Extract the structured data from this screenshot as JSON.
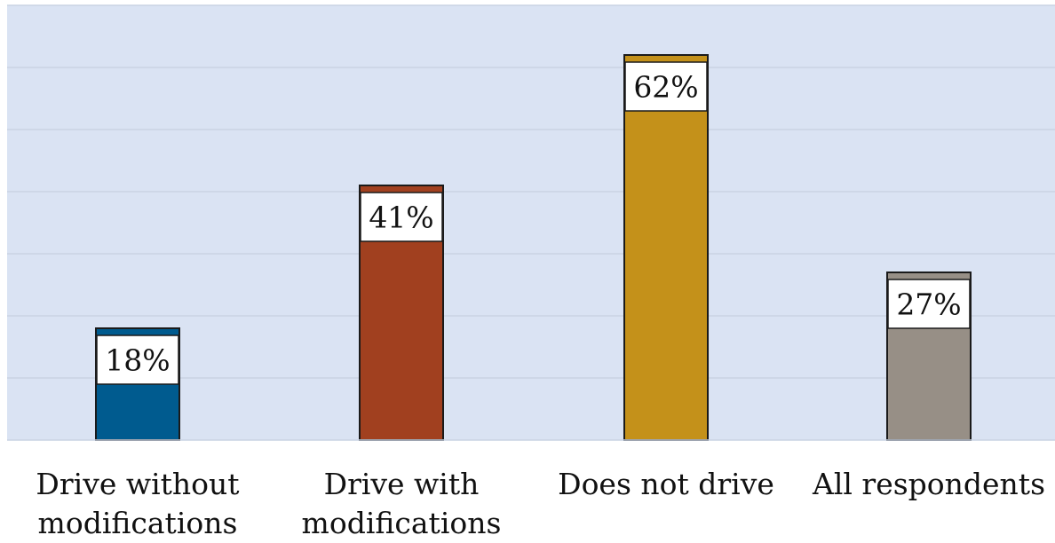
{
  "chart_data": {
    "type": "bar",
    "categories": [
      "Drive without\nmodifications",
      "Drive with\nmodifications",
      "Does not drive",
      "All respondents"
    ],
    "values": [
      18,
      41,
      62,
      27
    ],
    "data_labels": [
      "18%",
      "41%",
      "62%",
      "27%"
    ],
    "colors": [
      "#005b8f",
      "#a1401f",
      "#c4911a",
      "#978f86"
    ],
    "ylim": [
      0,
      70
    ],
    "grid": true,
    "plot_background": "#dae3f3",
    "gridline_color": "#c9d3e3",
    "legend": "none"
  }
}
